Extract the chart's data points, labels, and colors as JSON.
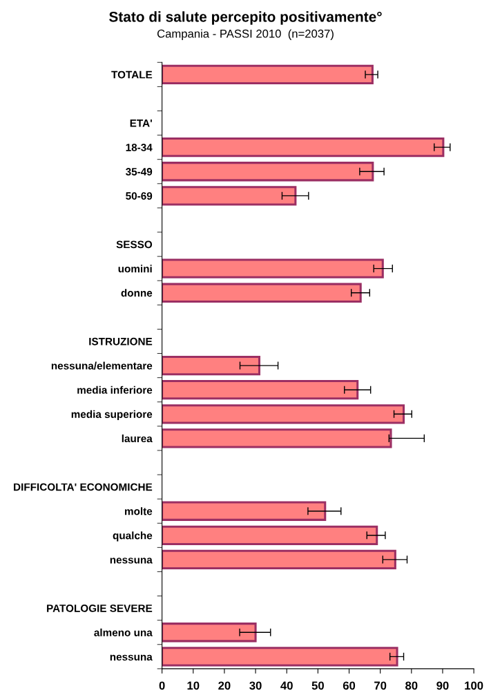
{
  "chart_data": {
    "type": "bar",
    "orientation": "horizontal",
    "title": "Stato di salute percepito positivamente°",
    "subtitle": "Campania - PASSI 2010  (n=2037)",
    "categories": [
      "TOTALE",
      null,
      "ETA'",
      "18-34",
      "35-49",
      "50-69",
      null,
      "SESSO",
      "uomini",
      "donne",
      null,
      "ISTRUZIONE",
      "nessuna/elementare",
      "media inferiore",
      "media superiore",
      "laurea",
      null,
      "DIFFICOLTA' ECONOMICHE",
      "molte",
      "qualche",
      "nessuna",
      null,
      "PATOLOGIE SEVERE",
      "almeno una",
      "nessuna"
    ],
    "values": [
      67.5,
      null,
      null,
      90.2,
      67.6,
      42.8,
      null,
      null,
      70.8,
      63.7,
      null,
      null,
      31.2,
      62.7,
      77.5,
      73.4,
      null,
      null,
      52.3,
      68.9,
      74.8,
      null,
      null,
      30.0,
      75.4
    ],
    "errors": [
      [
        65.2,
        69.2
      ],
      null,
      null,
      [
        87.3,
        92.4
      ],
      [
        63.4,
        71.2
      ],
      [
        38.5,
        47.0
      ],
      null,
      null,
      [
        67.9,
        73.9
      ],
      [
        60.7,
        66.6
      ],
      null,
      null,
      [
        25.0,
        37.2
      ],
      [
        58.5,
        66.9
      ],
      [
        74.4,
        80.1
      ],
      [
        72.8,
        84.1
      ],
      null,
      null,
      [
        46.8,
        57.4
      ],
      [
        65.7,
        71.6
      ],
      [
        70.8,
        78.6
      ],
      null,
      null,
      [
        24.9,
        34.8
      ],
      [
        73.1,
        77.5
      ]
    ],
    "color": "#ff8080",
    "xlim": [
      0,
      100
    ],
    "xticks": [
      0,
      10,
      20,
      30,
      40,
      50,
      60,
      70,
      80,
      90,
      100
    ],
    "grid": false,
    "legend": false
  }
}
